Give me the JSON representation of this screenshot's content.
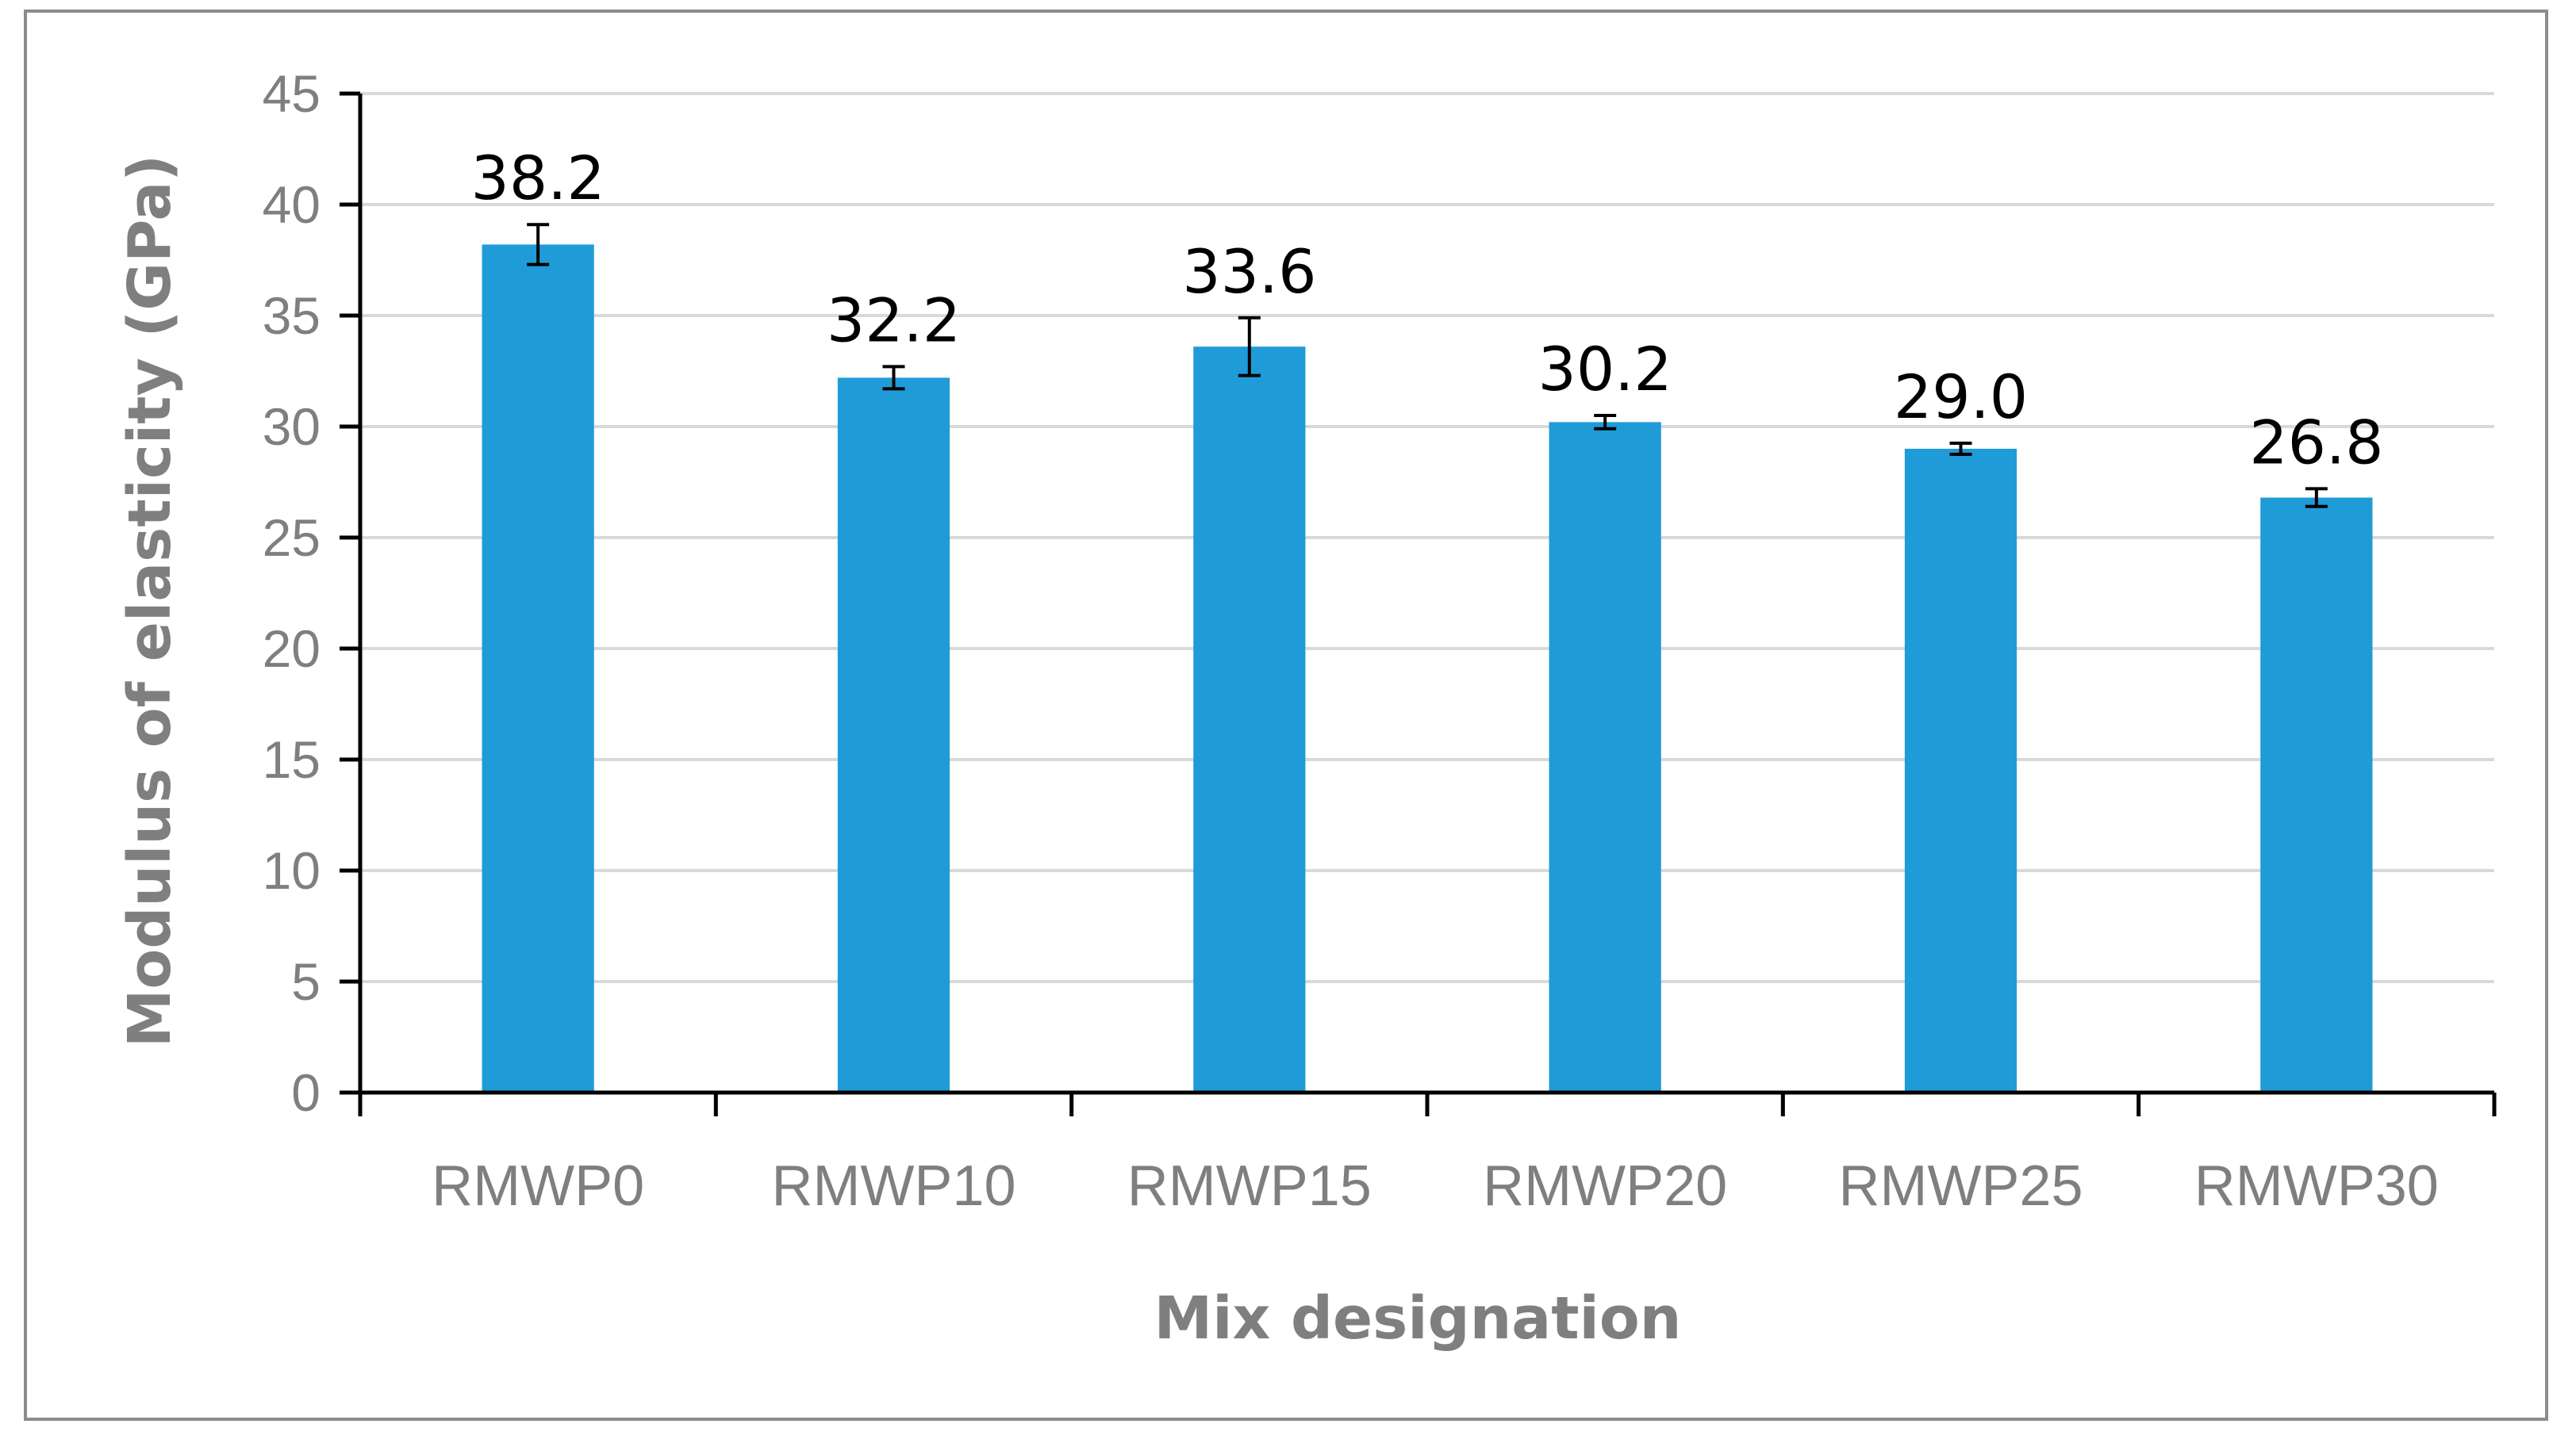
{
  "chart_data": {
    "type": "bar",
    "categories": [
      "RMWP0",
      "RMWP10",
      "RMWP15",
      "RMWP20",
      "RMWP25",
      "RMWP30"
    ],
    "values": [
      38.2,
      32.2,
      33.6,
      30.2,
      29.0,
      26.8
    ],
    "value_labels": [
      "38.2",
      "32.2",
      "33.6",
      "30.2",
      "29.0",
      "26.8"
    ],
    "error_bars": [
      0.9,
      0.5,
      1.3,
      0.3,
      0.25,
      0.4
    ],
    "xlabel": "Mix designation",
    "ylabel": "Modulus of elasticity (GPa)",
    "ylim": [
      0,
      45
    ],
    "yticks": [
      0,
      5,
      10,
      15,
      20,
      25,
      30,
      35,
      40,
      45
    ],
    "grid": true,
    "legend": "none",
    "colors": {
      "bar": "#1f9bd8",
      "grid": "#d9d9d9",
      "axis": "#000000",
      "text": "#7f7f7f",
      "frame": "#8c8c8c"
    }
  }
}
